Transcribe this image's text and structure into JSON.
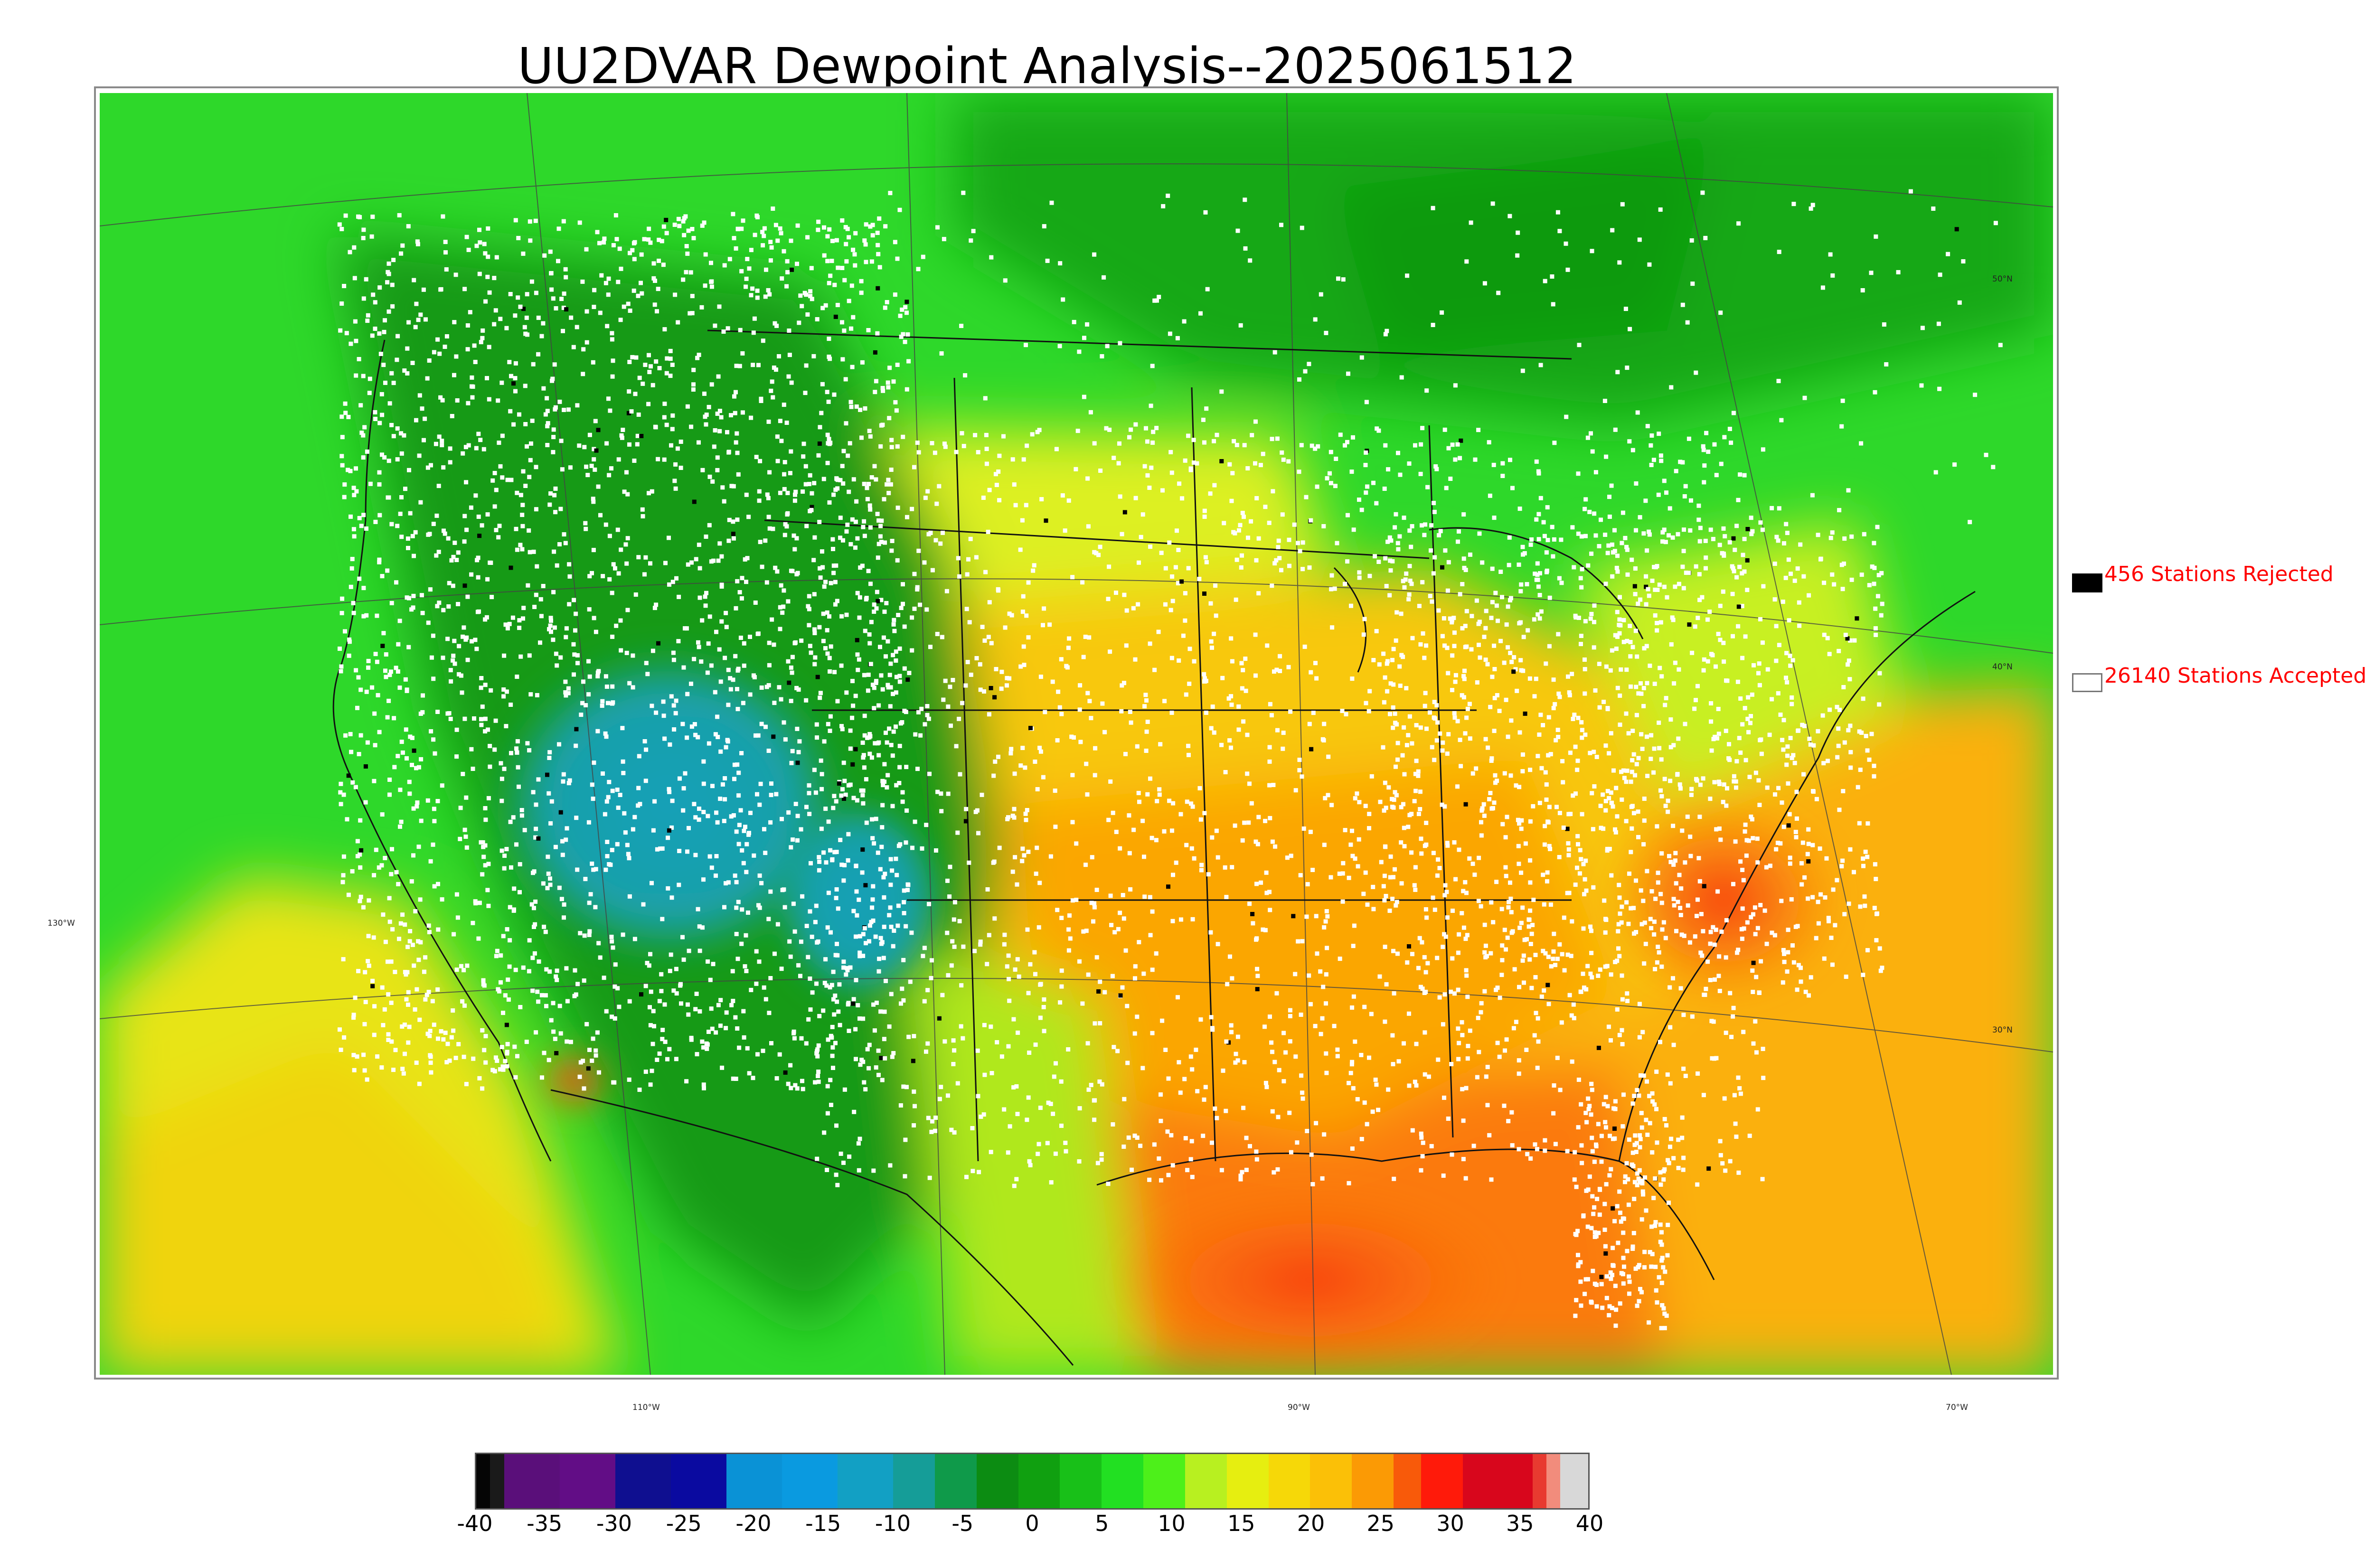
{
  "title": "UU2DVAR Dewpoint Analysis--2025061512",
  "map": {
    "lat_labels": [
      "50°N",
      "40°N",
      "30°N"
    ],
    "lon_labels_bottom": [
      "110°W",
      "90°W",
      "70°W"
    ],
    "lon_label_left": "130°W"
  },
  "legend": {
    "rejected": {
      "label": "456 Stations Rejected",
      "swatch_color": "#000000"
    },
    "accepted": {
      "label": "26140 Stations Accepted",
      "swatch_color": "#ffffff"
    },
    "text_color": "#ff0000"
  },
  "colorbar": {
    "ticks": [
      "-40",
      "-35",
      "-30",
      "-25",
      "-20",
      "-15",
      "-10",
      "-5",
      "0",
      "5",
      "10",
      "15",
      "20",
      "25",
      "30",
      "35",
      "40"
    ],
    "segments": [
      {
        "from": -40,
        "to": -39,
        "color": "#050505"
      },
      {
        "from": -39,
        "to": -38,
        "color": "#1a1a1a"
      },
      {
        "from": -38,
        "to": -34,
        "color": "#5a0f7a"
      },
      {
        "from": -34,
        "to": -30,
        "color": "#620d86"
      },
      {
        "from": -30,
        "to": -26,
        "color": "#0f0f90"
      },
      {
        "from": -26,
        "to": -22,
        "color": "#0a0aa0"
      },
      {
        "from": -22,
        "to": -18,
        "color": "#0a92d6"
      },
      {
        "from": -18,
        "to": -14,
        "color": "#0a9ae0"
      },
      {
        "from": -14,
        "to": -10,
        "color": "#12a0c4"
      },
      {
        "from": -10,
        "to": -7,
        "color": "#159d98"
      },
      {
        "from": -7,
        "to": -4,
        "color": "#0f9a4a"
      },
      {
        "from": -4,
        "to": -1,
        "color": "#0c8c12"
      },
      {
        "from": -1,
        "to": 2,
        "color": "#10a010"
      },
      {
        "from": 2,
        "to": 5,
        "color": "#18c018"
      },
      {
        "from": 5,
        "to": 8,
        "color": "#22e022"
      },
      {
        "from": 8,
        "to": 11,
        "color": "#4df01a"
      },
      {
        "from": 11,
        "to": 14,
        "color": "#b8f020"
      },
      {
        "from": 14,
        "to": 17,
        "color": "#e6ee10"
      },
      {
        "from": 17,
        "to": 20,
        "color": "#f6d808"
      },
      {
        "from": 20,
        "to": 23,
        "color": "#fbc007"
      },
      {
        "from": 23,
        "to": 26,
        "color": "#fb9a05"
      },
      {
        "from": 26,
        "to": 28,
        "color": "#f85a0a"
      },
      {
        "from": 28,
        "to": 31,
        "color": "#ff1a0a"
      },
      {
        "from": 31,
        "to": 36,
        "color": "#d8061c"
      },
      {
        "from": 36,
        "to": 37,
        "color": "#e83a30"
      },
      {
        "from": 37,
        "to": 38,
        "color": "#f28c7c"
      },
      {
        "from": 38,
        "to": 40,
        "color": "#d8d8d8"
      }
    ]
  }
}
